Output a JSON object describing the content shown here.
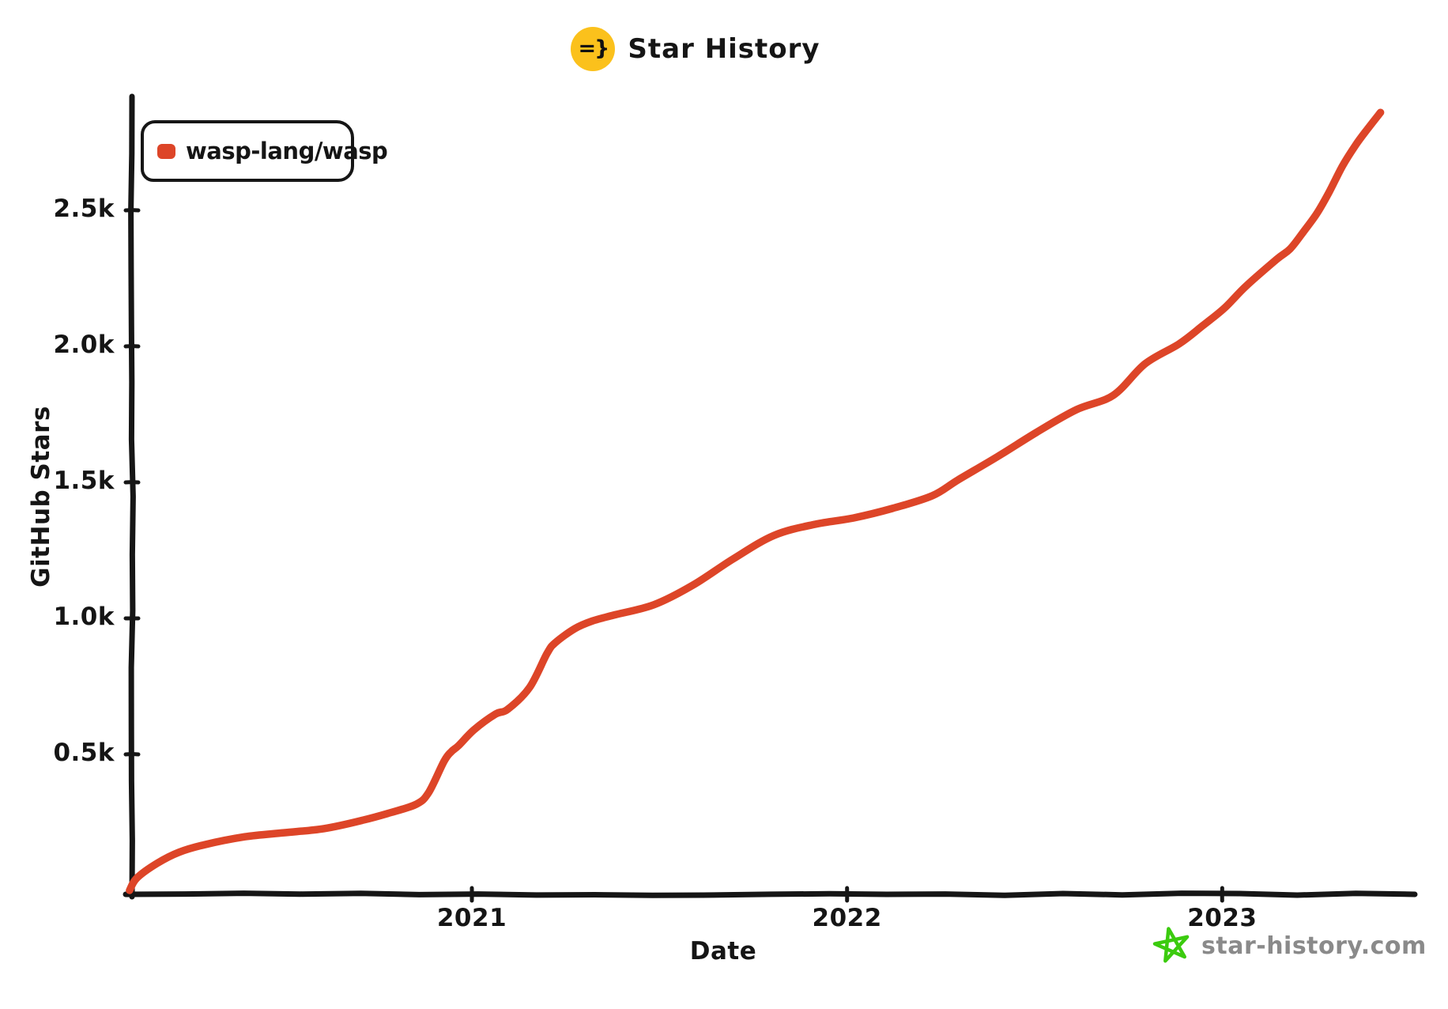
{
  "page": {
    "background": "#ffffff"
  },
  "header": {
    "title": "Star History",
    "icon": {
      "glyph": "=}",
      "bg_color": "#fbc11c",
      "fg_color": "#111111"
    }
  },
  "legend": {
    "items": [
      {
        "label": "wasp-lang/wasp",
        "color": "#dd4528"
      }
    ]
  },
  "chart_data": {
    "type": "line",
    "title": "Star History",
    "xlabel": "Date",
    "ylabel": "GitHub Stars",
    "grid": false,
    "legend_position": "top-left",
    "axis_color": "#161616",
    "text_color": "#151515",
    "ylim": [
      0,
      2900
    ],
    "x_range": [
      "2020-02-03",
      "2023-06-04"
    ],
    "y_ticks": [
      {
        "label": "0.5k",
        "value": 500
      },
      {
        "label": "1.0k",
        "value": 1000
      },
      {
        "label": "1.5k",
        "value": 1500
      },
      {
        "label": "2.0k",
        "value": 2000
      },
      {
        "label": "2.5k",
        "value": 2500
      }
    ],
    "x_ticks": [
      {
        "label": "2021",
        "date": "2021-01-01"
      },
      {
        "label": "2022",
        "date": "2022-01-01"
      },
      {
        "label": "2023",
        "date": "2023-01-01"
      }
    ],
    "series": [
      {
        "name": "wasp-lang/wasp",
        "color": "#dd4528",
        "points": [
          [
            "2020-02-03",
            0
          ],
          [
            "2020-02-10",
            45
          ],
          [
            "2020-03-01",
            100
          ],
          [
            "2020-03-22",
            140
          ],
          [
            "2020-04-16",
            168
          ],
          [
            "2020-05-25",
            197
          ],
          [
            "2020-07-02",
            212
          ],
          [
            "2020-08-10",
            227
          ],
          [
            "2020-09-17",
            258
          ],
          [
            "2020-10-13",
            285
          ],
          [
            "2020-11-08",
            317
          ],
          [
            "2020-11-20",
            360
          ],
          [
            "2020-12-05",
            475
          ],
          [
            "2020-12-12",
            510
          ],
          [
            "2020-12-19",
            532
          ],
          [
            "2021-01-03",
            590
          ],
          [
            "2021-01-24",
            648
          ],
          [
            "2021-02-05",
            666
          ],
          [
            "2021-02-26",
            745
          ],
          [
            "2021-03-15",
            870
          ],
          [
            "2021-03-23",
            910
          ],
          [
            "2021-04-11",
            962
          ],
          [
            "2021-04-28",
            990
          ],
          [
            "2021-05-19",
            1012
          ],
          [
            "2021-06-27",
            1050
          ],
          [
            "2021-08-04",
            1122
          ],
          [
            "2021-09-12",
            1218
          ],
          [
            "2021-10-22",
            1305
          ],
          [
            "2021-12-01",
            1346
          ],
          [
            "2022-01-07",
            1369
          ],
          [
            "2022-02-14",
            1404
          ],
          [
            "2022-03-25",
            1451
          ],
          [
            "2022-04-19",
            1509
          ],
          [
            "2022-05-28",
            1596
          ],
          [
            "2022-07-04",
            1683
          ],
          [
            "2022-08-12",
            1767
          ],
          [
            "2022-09-17",
            1820
          ],
          [
            "2022-10-18",
            1936
          ],
          [
            "2022-11-20",
            2009
          ],
          [
            "2022-12-13",
            2076
          ],
          [
            "2023-01-03",
            2140
          ],
          [
            "2023-01-24",
            2221
          ],
          [
            "2023-02-23",
            2320
          ],
          [
            "2023-03-08",
            2358
          ],
          [
            "2023-03-21",
            2421
          ],
          [
            "2023-04-03",
            2488
          ],
          [
            "2023-04-15",
            2567
          ],
          [
            "2023-04-28",
            2663
          ],
          [
            "2023-05-11",
            2741
          ],
          [
            "2023-05-23",
            2802
          ],
          [
            "2023-06-04",
            2860
          ]
        ]
      }
    ]
  },
  "footer": {
    "site": "star-history.com",
    "star_icon_color": "#3bcb0e",
    "text_color": "#8a8a8a"
  }
}
